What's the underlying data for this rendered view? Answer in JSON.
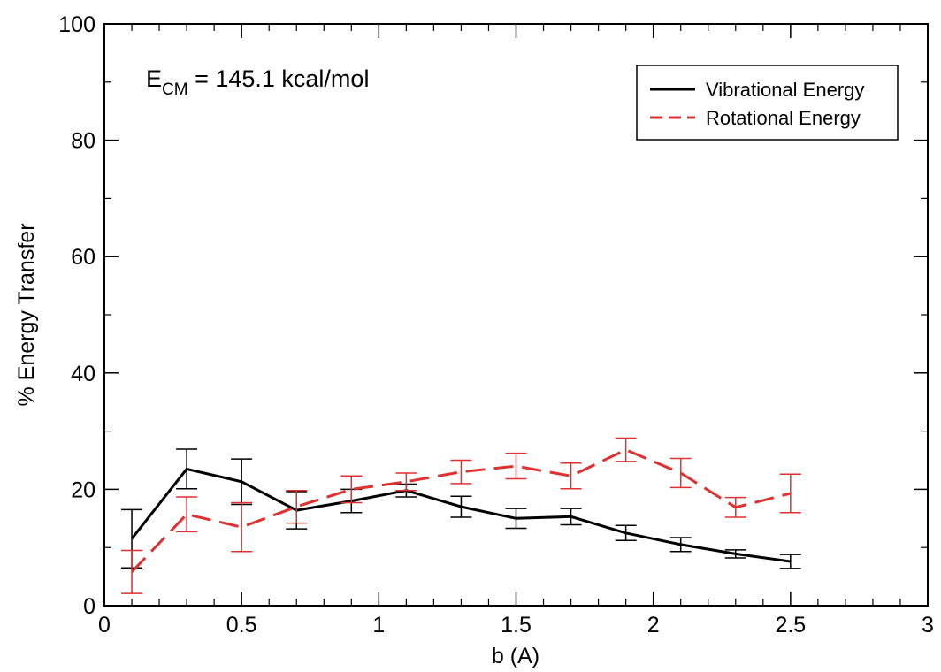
{
  "chart_data": {
    "type": "line",
    "xlabel": "b (A)",
    "ylabel": "% Energy Transfer",
    "xlim": [
      0,
      3
    ],
    "ylim": [
      0,
      100
    ],
    "x_ticks": [
      "0",
      "0.5",
      "1",
      "1.5",
      "2",
      "2.5",
      "3"
    ],
    "y_ticks": [
      "0",
      "20",
      "40",
      "60",
      "80",
      "100"
    ],
    "grid": false,
    "legend_position": "top-right",
    "annotation": {
      "main": "E",
      "subscript": "CM",
      "rest": " = 145.1 kcal/mol"
    },
    "x": [
      0.1,
      0.3,
      0.5,
      0.7,
      0.9,
      1.1,
      1.3,
      1.5,
      1.7,
      1.9,
      2.1,
      2.3,
      2.5
    ],
    "series": [
      {
        "name": "Vibrational Energy",
        "color": "#000000",
        "dash": "solid",
        "values": [
          11.5,
          23.5,
          21.3,
          16.4,
          18.0,
          19.8,
          17.0,
          15.0,
          15.3,
          12.5,
          10.5,
          8.9,
          7.6
        ],
        "errors": [
          5.0,
          3.4,
          3.9,
          3.2,
          2.0,
          1.1,
          1.8,
          1.7,
          1.4,
          1.3,
          1.2,
          0.7,
          1.2
        ]
      },
      {
        "name": "Rotational Energy",
        "color": "#e03030",
        "dash": "dashed",
        "values": [
          5.8,
          15.7,
          13.5,
          17.0,
          20.0,
          21.3,
          23.0,
          24.0,
          22.3,
          26.8,
          22.8,
          16.9,
          19.3
        ],
        "errors": [
          3.7,
          3.0,
          4.2,
          2.8,
          2.3,
          1.5,
          2.0,
          2.2,
          2.2,
          2.0,
          2.5,
          1.7,
          3.3
        ]
      }
    ]
  }
}
